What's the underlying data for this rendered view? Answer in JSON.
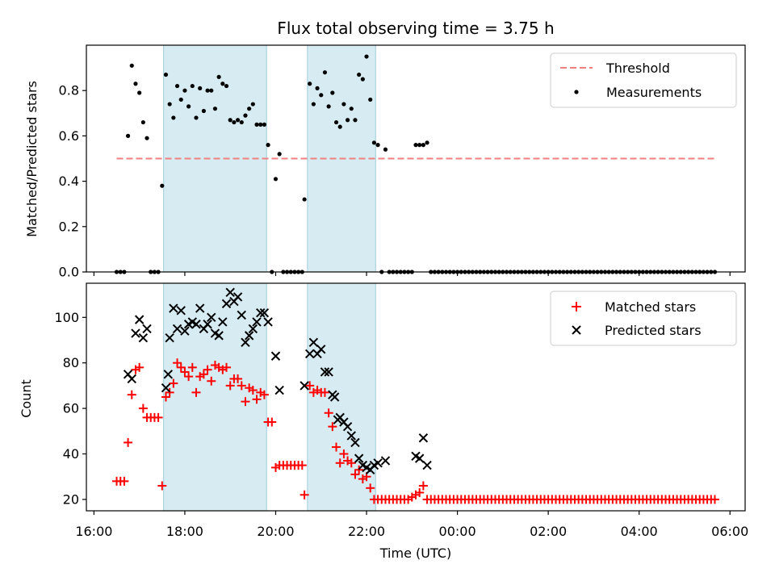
{
  "figure": {
    "title": "Flux total observing time = 3.75 h"
  },
  "chart_data": [
    {
      "type": "scatter",
      "ylabel": "Matched/Predicted stars",
      "ylim": [
        0,
        1.0
      ],
      "yticks": [
        0.0,
        0.2,
        0.4,
        0.6,
        0.8
      ],
      "ytick_labels": [
        "0.0",
        "0.2",
        "0.4",
        "0.6",
        "0.8"
      ],
      "shaded_regions": [
        [
          "17:32",
          "19:48"
        ],
        [
          "20:42",
          "22:12"
        ]
      ],
      "threshold": {
        "name": "Threshold",
        "value": 0.5,
        "x_range": [
          "16:30",
          "05:40"
        ],
        "color": "#f08080"
      },
      "series": [
        {
          "name": "Measurements",
          "marker": "dot",
          "color": "#000000",
          "points": [
            [
              "16:30",
              0
            ],
            [
              "16:35",
              0
            ],
            [
              "16:40",
              0
            ],
            [
              "16:45",
              0.6
            ],
            [
              "16:50",
              0.91
            ],
            [
              "16:55",
              0.83
            ],
            [
              "17:00",
              0.79
            ],
            [
              "17:05",
              0.66
            ],
            [
              "17:10",
              0.59
            ],
            [
              "17:15",
              0
            ],
            [
              "17:20",
              0
            ],
            [
              "17:25",
              0
            ],
            [
              "17:30",
              0.38
            ],
            [
              "17:35",
              0.87
            ],
            [
              "17:40",
              0.74
            ],
            [
              "17:45",
              0.68
            ],
            [
              "17:50",
              0.82
            ],
            [
              "17:55",
              0.76
            ],
            [
              "18:00",
              0.8
            ],
            [
              "18:05",
              0.73
            ],
            [
              "18:10",
              0.82
            ],
            [
              "18:15",
              0.68
            ],
            [
              "18:20",
              0.81
            ],
            [
              "18:25",
              0.71
            ],
            [
              "18:30",
              0.8
            ],
            [
              "18:35",
              0.8
            ],
            [
              "18:40",
              0.72
            ],
            [
              "18:45",
              0.86
            ],
            [
              "18:50",
              0.83
            ],
            [
              "18:55",
              0.82
            ],
            [
              "19:00",
              0.67
            ],
            [
              "19:05",
              0.66
            ],
            [
              "19:10",
              0.67
            ],
            [
              "19:15",
              0.66
            ],
            [
              "19:20",
              0.69
            ],
            [
              "19:25",
              0.72
            ],
            [
              "19:30",
              0.74
            ],
            [
              "19:35",
              0.65
            ],
            [
              "19:40",
              0.65
            ],
            [
              "19:45",
              0.65
            ],
            [
              "19:50",
              0.56
            ],
            [
              "19:55",
              0
            ],
            [
              "20:00",
              0.41
            ],
            [
              "20:05",
              0.52
            ],
            [
              "20:10",
              0
            ],
            [
              "20:15",
              0
            ],
            [
              "20:20",
              0
            ],
            [
              "20:25",
              0
            ],
            [
              "20:30",
              0
            ],
            [
              "20:35",
              0
            ],
            [
              "20:38",
              0.32
            ],
            [
              "20:45",
              0.83
            ],
            [
              "20:50",
              0.74
            ],
            [
              "20:55",
              0.81
            ],
            [
              "21:00",
              0.78
            ],
            [
              "21:05",
              0.88
            ],
            [
              "21:10",
              0.73
            ],
            [
              "21:15",
              0.79
            ],
            [
              "21:20",
              0.66
            ],
            [
              "21:25",
              0.64
            ],
            [
              "21:30",
              0.74
            ],
            [
              "21:35",
              0.67
            ],
            [
              "21:40",
              0.72
            ],
            [
              "21:45",
              0.67
            ],
            [
              "21:50",
              0.87
            ],
            [
              "21:55",
              0.85
            ],
            [
              "22:00",
              0.95
            ],
            [
              "22:05",
              0.76
            ],
            [
              "22:10",
              0.57
            ],
            [
              "22:15",
              0.56
            ],
            [
              "22:20",
              0
            ],
            [
              "22:25",
              0.54
            ],
            [
              "22:30",
              0
            ],
            [
              "22:35",
              0
            ],
            [
              "22:40",
              0
            ],
            [
              "22:45",
              0
            ],
            [
              "22:50",
              0
            ],
            [
              "22:55",
              0
            ],
            [
              "23:00",
              0
            ],
            [
              "23:05",
              0.56
            ],
            [
              "23:10",
              0.56
            ],
            [
              "23:15",
              0.56
            ],
            [
              "23:20",
              0.57
            ],
            [
              "23:25",
              0
            ]
          ],
          "zero_range": [
            "23:25",
            "05:40",
            5
          ]
        }
      ]
    },
    {
      "type": "scatter",
      "xlabel": "Time (UTC)",
      "ylabel": "Count",
      "ylim": [
        15,
        115
      ],
      "yticks": [
        20,
        40,
        60,
        80,
        100
      ],
      "ytick_labels": [
        "20",
        "40",
        "60",
        "80",
        "100"
      ],
      "xticks": [
        "16:00",
        "18:00",
        "20:00",
        "22:00",
        "00:00",
        "02:00",
        "04:00",
        "06:00"
      ],
      "xlim": [
        "15:50",
        "06:20"
      ],
      "shaded_regions": [
        [
          "17:32",
          "19:48"
        ],
        [
          "20:42",
          "22:12"
        ]
      ],
      "series": [
        {
          "name": "Matched stars",
          "marker": "plus",
          "color": "#ff0000",
          "points": [
            [
              "16:30",
              28
            ],
            [
              "16:35",
              28
            ],
            [
              "16:40",
              28
            ],
            [
              "16:45",
              45
            ],
            [
              "16:50",
              66
            ],
            [
              "16:55",
              77
            ],
            [
              "17:00",
              78
            ],
            [
              "17:05",
              60
            ],
            [
              "17:10",
              56
            ],
            [
              "17:15",
              56
            ],
            [
              "17:20",
              56
            ],
            [
              "17:25",
              56
            ],
            [
              "17:30",
              26
            ],
            [
              "17:35",
              65
            ],
            [
              "17:40",
              67
            ],
            [
              "17:45",
              71
            ],
            [
              "17:50",
              80
            ],
            [
              "17:55",
              78
            ],
            [
              "18:00",
              76
            ],
            [
              "18:05",
              74
            ],
            [
              "18:10",
              78
            ],
            [
              "18:15",
              67
            ],
            [
              "18:20",
              74
            ],
            [
              "18:25",
              75
            ],
            [
              "18:30",
              77
            ],
            [
              "18:35",
              72
            ],
            [
              "18:40",
              79
            ],
            [
              "18:45",
              78
            ],
            [
              "18:50",
              77
            ],
            [
              "18:55",
              78
            ],
            [
              "19:00",
              70
            ],
            [
              "19:05",
              73
            ],
            [
              "19:10",
              73
            ],
            [
              "19:15",
              70
            ],
            [
              "19:20",
              63
            ],
            [
              "19:25",
              69
            ],
            [
              "19:30",
              68
            ],
            [
              "19:35",
              64
            ],
            [
              "19:40",
              67
            ],
            [
              "19:45",
              66
            ],
            [
              "19:50",
              54
            ],
            [
              "19:55",
              54
            ],
            [
              "20:00",
              34
            ],
            [
              "20:05",
              35
            ],
            [
              "20:10",
              35
            ],
            [
              "20:15",
              35
            ],
            [
              "20:20",
              35
            ],
            [
              "20:25",
              35
            ],
            [
              "20:30",
              35
            ],
            [
              "20:35",
              35
            ],
            [
              "20:38",
              22
            ],
            [
              "20:45",
              70
            ],
            [
              "20:50",
              67
            ],
            [
              "20:55",
              68
            ],
            [
              "21:00",
              67
            ],
            [
              "21:05",
              67
            ],
            [
              "21:10",
              58
            ],
            [
              "21:15",
              52
            ],
            [
              "21:20",
              43
            ],
            [
              "21:25",
              36
            ],
            [
              "21:30",
              40
            ],
            [
              "21:35",
              37
            ],
            [
              "21:40",
              36
            ],
            [
              "21:45",
              31
            ],
            [
              "21:50",
              33
            ],
            [
              "21:55",
              29
            ],
            [
              "22:00",
              30
            ],
            [
              "22:05",
              25
            ],
            [
              "22:10",
              20
            ],
            [
              "22:15",
              20
            ],
            [
              "22:20",
              20
            ],
            [
              "22:25",
              20
            ],
            [
              "22:30",
              20
            ],
            [
              "22:35",
              20
            ],
            [
              "22:40",
              20
            ],
            [
              "22:45",
              20
            ],
            [
              "22:50",
              20
            ],
            [
              "22:55",
              20
            ],
            [
              "23:00",
              21
            ],
            [
              "23:05",
              22
            ],
            [
              "23:10",
              23
            ],
            [
              "23:15",
              26
            ],
            [
              "23:20",
              20
            ],
            [
              "23:25",
              20
            ]
          ],
          "constant_range": [
            "23:25",
            "05:40",
            5,
            20
          ]
        },
        {
          "name": "Predicted stars",
          "marker": "x",
          "color": "#000000",
          "points": [
            [
              "16:45",
              75
            ],
            [
              "16:50",
              73
            ],
            [
              "16:55",
              93
            ],
            [
              "17:00",
              99
            ],
            [
              "17:05",
              91
            ],
            [
              "17:10",
              95
            ],
            [
              "17:35",
              69
            ],
            [
              "17:38",
              75
            ],
            [
              "17:40",
              91
            ],
            [
              "17:45",
              104
            ],
            [
              "17:50",
              95
            ],
            [
              "17:55",
              103
            ],
            [
              "18:00",
              94
            ],
            [
              "18:05",
              97
            ],
            [
              "18:10",
              98
            ],
            [
              "18:15",
              97
            ],
            [
              "18:20",
              104
            ],
            [
              "18:25",
              95
            ],
            [
              "18:30",
              97
            ],
            [
              "18:35",
              100
            ],
            [
              "18:40",
              93
            ],
            [
              "18:45",
              92
            ],
            [
              "18:50",
              98
            ],
            [
              "18:55",
              106
            ],
            [
              "19:00",
              111
            ],
            [
              "19:05",
              107
            ],
            [
              "19:10",
              109
            ],
            [
              "19:15",
              101
            ],
            [
              "19:20",
              89
            ],
            [
              "19:25",
              92
            ],
            [
              "19:30",
              95
            ],
            [
              "19:35",
              98
            ],
            [
              "19:40",
              102
            ],
            [
              "19:45",
              102
            ],
            [
              "19:50",
              98
            ],
            [
              "20:00",
              83
            ],
            [
              "20:05",
              68
            ],
            [
              "20:38",
              70
            ],
            [
              "20:45",
              84
            ],
            [
              "20:50",
              89
            ],
            [
              "20:55",
              84
            ],
            [
              "21:00",
              86
            ],
            [
              "21:05",
              76
            ],
            [
              "21:10",
              76
            ],
            [
              "21:15",
              66
            ],
            [
              "21:18",
              65
            ],
            [
              "21:22",
              55
            ],
            [
              "21:25",
              56
            ],
            [
              "21:30",
              54
            ],
            [
              "21:35",
              52
            ],
            [
              "21:40",
              48
            ],
            [
              "21:45",
              45
            ],
            [
              "21:50",
              38
            ],
            [
              "21:55",
              35
            ],
            [
              "22:00",
              34
            ],
            [
              "22:05",
              33
            ],
            [
              "22:10",
              35
            ],
            [
              "22:15",
              36
            ],
            [
              "22:25",
              37
            ],
            [
              "23:05",
              39
            ],
            [
              "23:10",
              38
            ],
            [
              "23:15",
              47
            ],
            [
              "23:20",
              35
            ]
          ]
        }
      ]
    }
  ]
}
